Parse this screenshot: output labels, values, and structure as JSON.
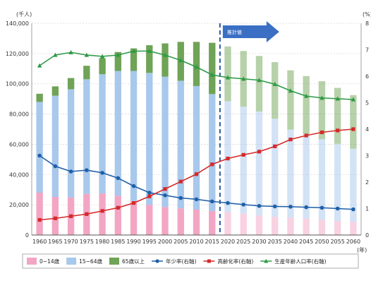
{
  "chart_data": {
    "type": "bar",
    "left_axis": {
      "unit": "(千人)",
      "ylim": [
        0,
        140000
      ],
      "ticks": [
        "0",
        "20,000",
        "40,000",
        "60,000",
        "80,000",
        "100,000",
        "120,000",
        "140,000"
      ]
    },
    "right_axis": {
      "unit": "(%)",
      "ylim": [
        0,
        8
      ],
      "ticks": [
        "0",
        "1",
        "2",
        "3",
        "4",
        "5",
        "6",
        "7",
        "8"
      ]
    },
    "xlabel": "(年)",
    "projection_label": "推計値",
    "projection_start": "2020",
    "categories": [
      "1960",
      "1965",
      "1970",
      "1975",
      "1980",
      "1985",
      "1990",
      "1995",
      "2000",
      "2005",
      "2010",
      "2015",
      "2020",
      "2025",
      "2030",
      "2035",
      "2040",
      "2045",
      "2050",
      "2055",
      "2060"
    ],
    "series": [
      {
        "name": "0~14歳",
        "kind": "bar",
        "color": "#f2a6c4",
        "values": [
          28000,
          25200,
          24800,
          27200,
          27500,
          26000,
          22500,
          20000,
          18500,
          17600,
          16800,
          15900,
          15100,
          14100,
          12900,
          12000,
          11400,
          10800,
          10000,
          9300,
          8600
        ]
      },
      {
        "name": "15~64歳",
        "kind": "bar",
        "color": "#a8c8ec",
        "values": [
          60000,
          66900,
          71600,
          75800,
          78800,
          82500,
          86000,
          87200,
          86200,
          84400,
          81700,
          77300,
          73400,
          70800,
          68800,
          64900,
          58300,
          55700,
          53300,
          51000,
          48500
        ]
      },
      {
        "name": "65歳以上",
        "kind": "bar",
        "color": "#6fa356",
        "values": [
          5400,
          6200,
          7400,
          8900,
          10600,
          12500,
          14900,
          18300,
          22000,
          25700,
          29200,
          33900,
          36200,
          36800,
          36700,
          37400,
          39200,
          38600,
          38400,
          37000,
          35400
        ]
      },
      {
        "name": "年少率(右軸)",
        "kind": "line",
        "axis": "right",
        "color": "#1f5fa8",
        "values": [
          3.0,
          2.6,
          2.4,
          2.45,
          2.35,
          2.15,
          1.85,
          1.6,
          1.5,
          1.4,
          1.35,
          1.27,
          1.21,
          1.15,
          1.1,
          1.08,
          1.07,
          1.05,
          1.03,
          1.0,
          0.97
        ]
      },
      {
        "name": "高齢化率(右軸)",
        "kind": "line",
        "axis": "right",
        "color": "#d42a2a",
        "values": [
          0.57,
          0.63,
          0.71,
          0.79,
          0.91,
          1.03,
          1.21,
          1.46,
          1.74,
          2.02,
          2.3,
          2.67,
          2.89,
          3.03,
          3.15,
          3.35,
          3.61,
          3.76,
          3.88,
          3.95,
          4.0
        ]
      },
      {
        "name": "生産年齢人口率(右軸)",
        "kind": "line",
        "axis": "right",
        "color": "#2e9a46",
        "values": [
          6.4,
          6.8,
          6.9,
          6.8,
          6.75,
          6.8,
          6.95,
          6.95,
          6.8,
          6.6,
          6.35,
          6.05,
          5.95,
          5.9,
          5.85,
          5.7,
          5.45,
          5.25,
          5.18,
          5.15,
          5.12
        ]
      }
    ]
  }
}
